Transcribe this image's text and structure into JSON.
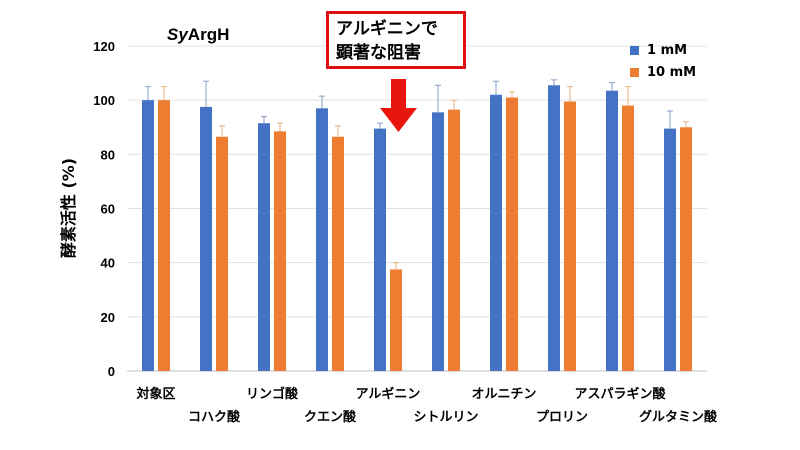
{
  "colors": {
    "series1": "#4472C4",
    "series2": "#ED7D31",
    "callout_border": "#E01010",
    "arrow": "#E8160C"
  },
  "callout": {
    "line1": "アルギニンで",
    "line2": "顕著な阻害"
  },
  "chart_data": {
    "type": "bar",
    "title": "SyArgH",
    "title_italic_part": "Sy",
    "title_rest": "ArgH",
    "xlabel": "",
    "ylabel": "酵素活性 (%)",
    "ylim": [
      0,
      120
    ],
    "yticks": [
      0,
      20,
      40,
      60,
      80,
      100,
      120
    ],
    "grid": true,
    "legend_position": "top-right",
    "categories": [
      "対象区",
      "コハク酸",
      "リンゴ酸",
      "クエン酸",
      "アルギニン",
      "シトルリン",
      "オルニチン",
      "プロリン",
      "アスパラギン酸",
      "グルタミン酸"
    ],
    "series": [
      {
        "name": "1 mM",
        "values": [
          100,
          97.5,
          91.5,
          97,
          89.5,
          95.5,
          102,
          105.5,
          103.5,
          89.5
        ],
        "errors": [
          5,
          9.5,
          2.5,
          4.5,
          2,
          10,
          5,
          2,
          3,
          6.5
        ]
      },
      {
        "name": "10 mM",
        "values": [
          100,
          86.5,
          88.5,
          86.5,
          37.5,
          96.5,
          101,
          99.5,
          98,
          90
        ],
        "errors": [
          5,
          4,
          3,
          4,
          2.5,
          3.5,
          2,
          5.5,
          7,
          2
        ]
      }
    ]
  }
}
